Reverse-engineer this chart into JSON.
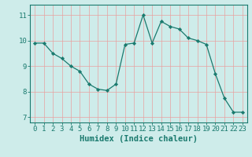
{
  "x": [
    0,
    1,
    2,
    3,
    4,
    5,
    6,
    7,
    8,
    9,
    10,
    11,
    12,
    13,
    14,
    15,
    16,
    17,
    18,
    19,
    20,
    21,
    22,
    23
  ],
  "y": [
    9.9,
    9.9,
    9.5,
    9.3,
    9.0,
    8.8,
    8.3,
    8.1,
    8.05,
    8.3,
    9.85,
    9.9,
    11.0,
    9.9,
    10.75,
    10.55,
    10.45,
    10.1,
    10.0,
    9.85,
    8.7,
    7.75,
    7.2,
    7.2
  ],
  "line_color": "#1a7a6e",
  "marker": "D",
  "marker_size": 2.2,
  "bg_color": "#ceecea",
  "grid_color": "#e8a0a0",
  "axis_color": "#1a7a6e",
  "tick_color": "#1a7a6e",
  "xlabel": "Humidex (Indice chaleur)",
  "xlabel_fontsize": 7.5,
  "ylim": [
    6.8,
    11.4
  ],
  "xlim": [
    -0.5,
    23.5
  ],
  "yticks": [
    7,
    8,
    9,
    10,
    11
  ],
  "xticks": [
    0,
    1,
    2,
    3,
    4,
    5,
    6,
    7,
    8,
    9,
    10,
    11,
    12,
    13,
    14,
    15,
    16,
    17,
    18,
    19,
    20,
    21,
    22,
    23
  ],
  "tick_fontsize": 6.5
}
